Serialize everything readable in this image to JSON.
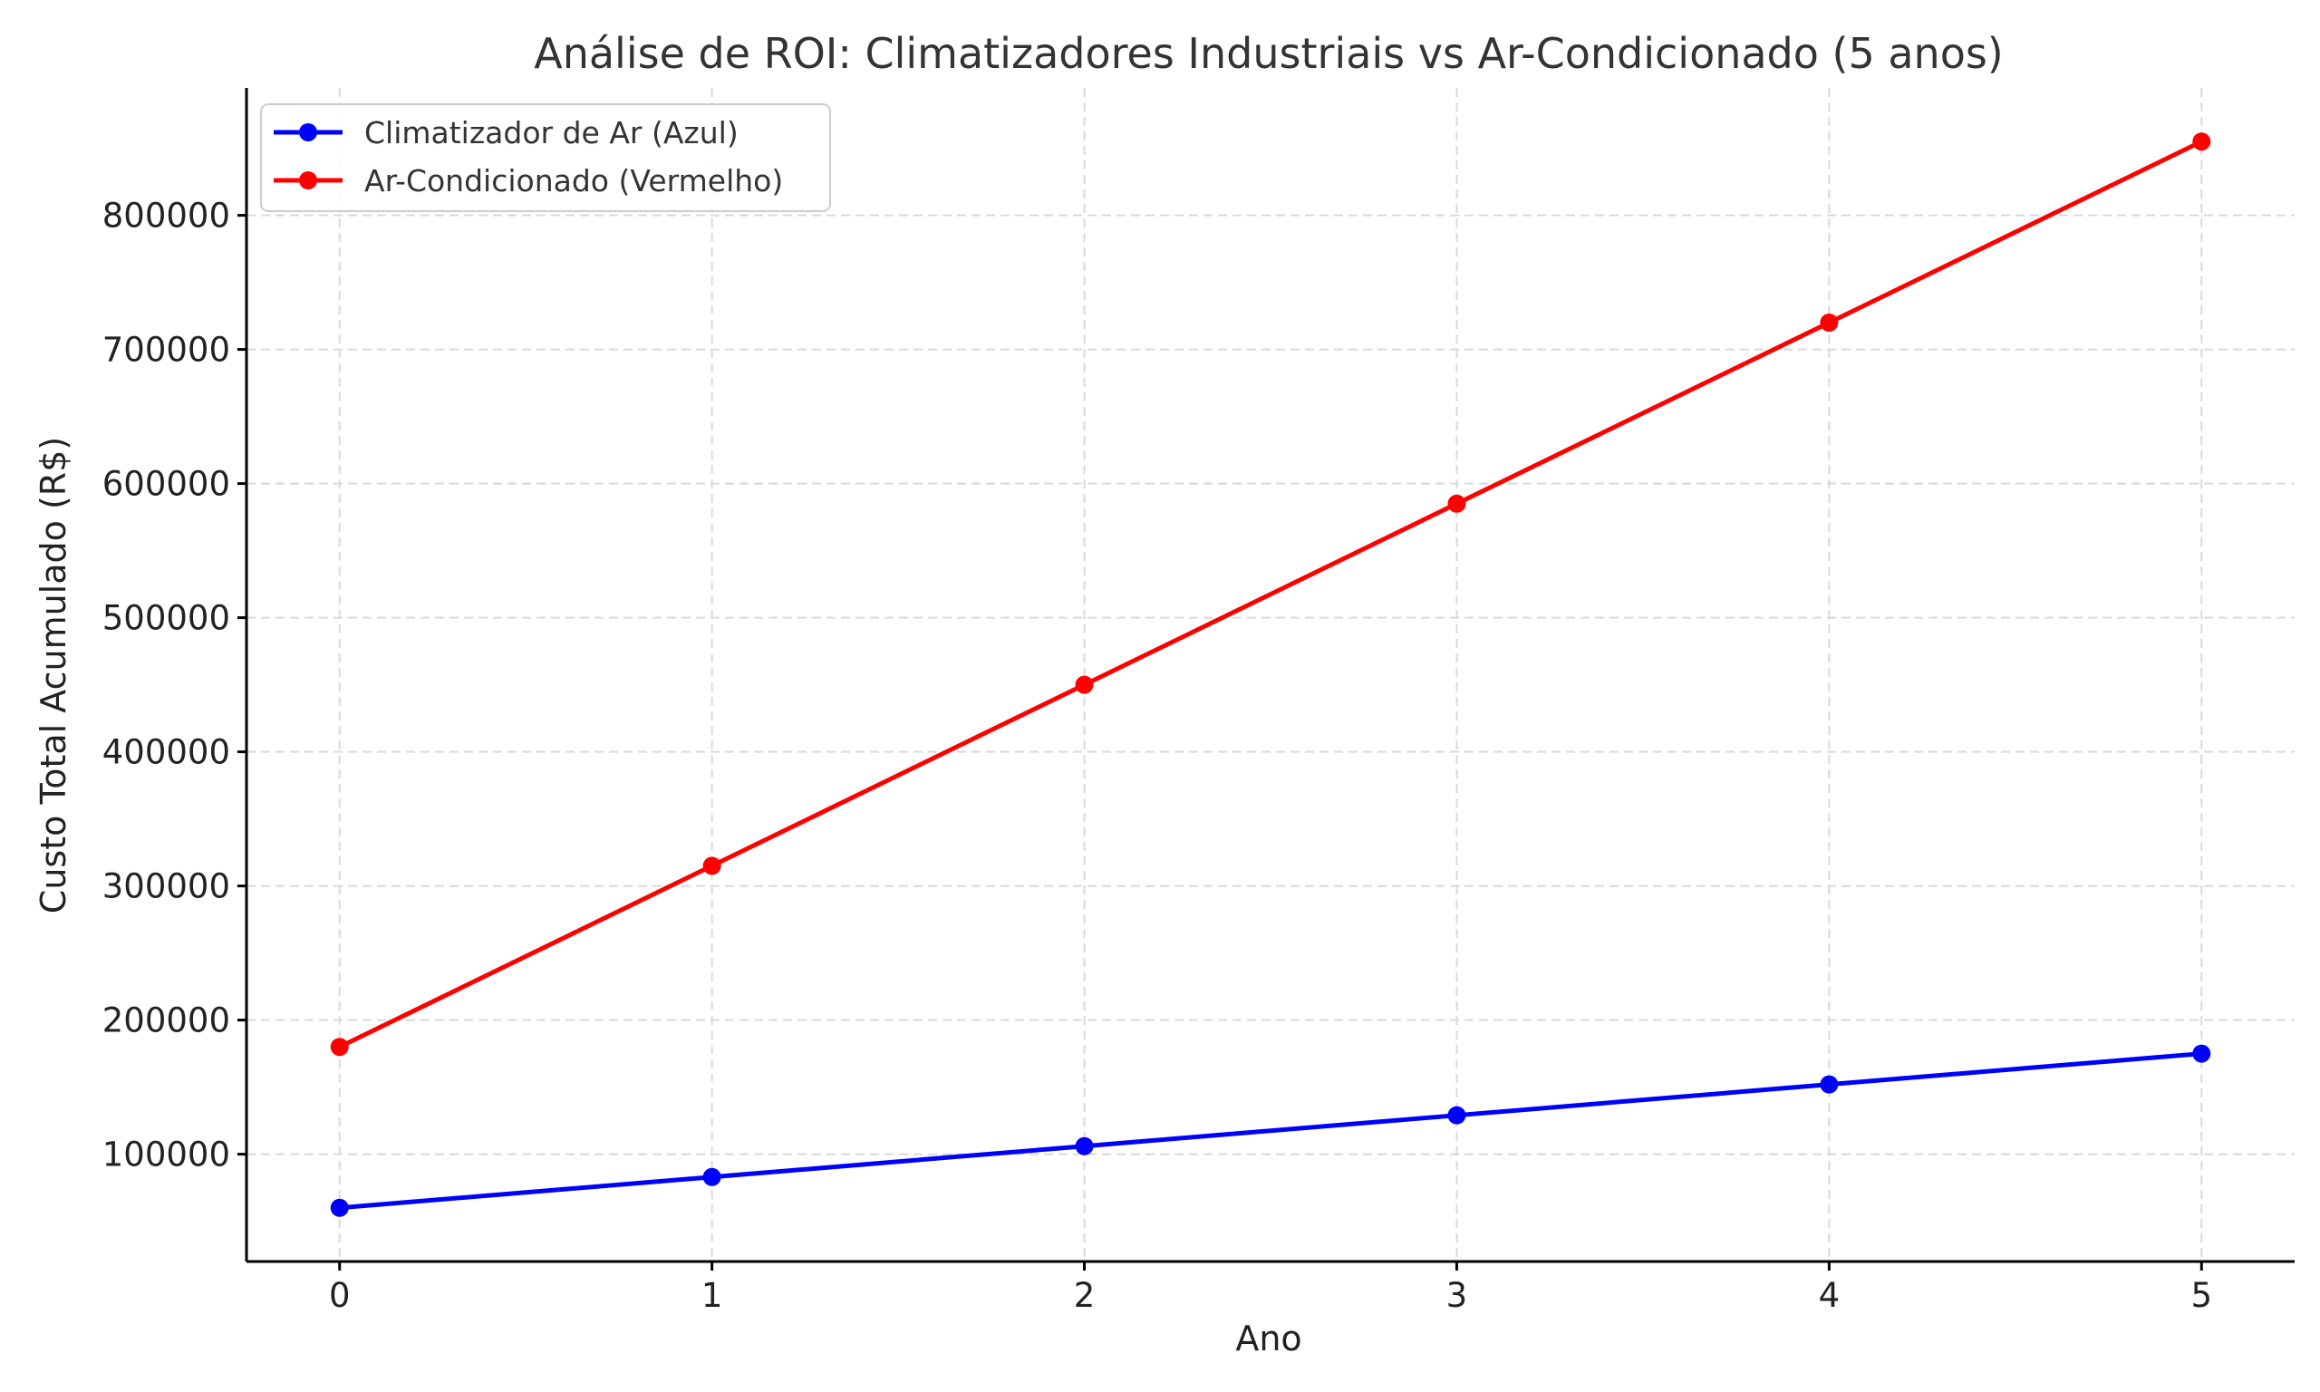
{
  "chart_data": {
    "type": "line",
    "title": "Análise de ROI: Climatizadores Industriais vs Ar-Condicionado (5 anos)",
    "xlabel": "Ano",
    "ylabel": "Custo Total Acumulado (R$)",
    "x": [
      0,
      1,
      2,
      3,
      4,
      5
    ],
    "xticks": [
      "0",
      "1",
      "2",
      "3",
      "4",
      "5"
    ],
    "yticks": [
      "100000",
      "200000",
      "300000",
      "400000",
      "500000",
      "600000",
      "700000",
      "800000"
    ],
    "xlim": [
      -0.25,
      5.25
    ],
    "ylim": [
      20000,
      895000
    ],
    "grid": true,
    "legend_position": "top-left",
    "series": [
      {
        "name": "Climatizador de Ar (Azul)",
        "color": "#0000ff",
        "values": [
          60000,
          83000,
          106000,
          129000,
          152000,
          175000
        ]
      },
      {
        "name": "Ar-Condicionado (Vermelho)",
        "color": "#ff0000",
        "values": [
          180000,
          315000,
          450000,
          585000,
          720000,
          855000
        ]
      }
    ]
  }
}
